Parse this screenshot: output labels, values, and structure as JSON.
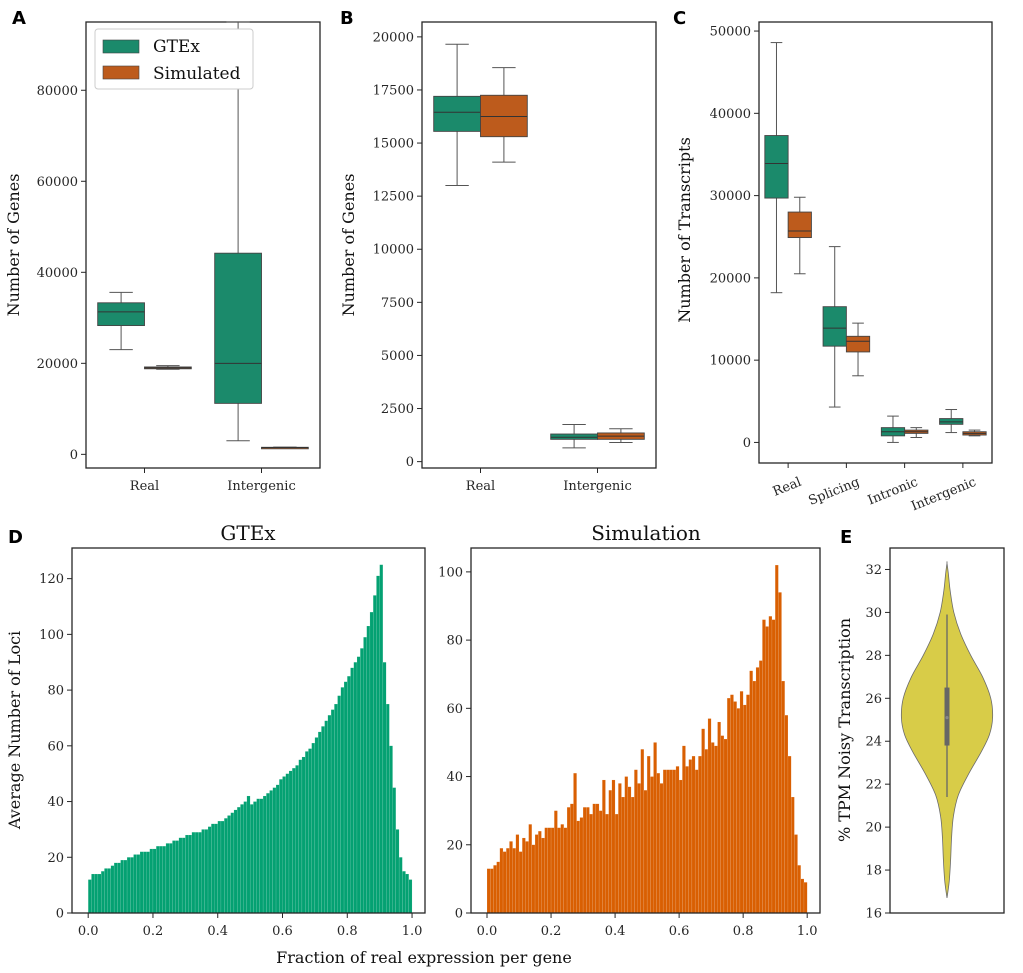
{
  "figure": {
    "panel_letters": [
      "A",
      "B",
      "C",
      "D",
      "E"
    ],
    "colors": {
      "gtex": "#1b8a6b",
      "simulated": "#bd5b1c",
      "gtex_hist": "#04a172",
      "sim_hist": "#d95f02",
      "violin": "#d8cc48"
    }
  },
  "chart_data": [
    {
      "id": "A",
      "type": "box",
      "title": "",
      "ylabel": "Number of Genes",
      "xlabel": "",
      "categories": [
        "Real",
        "Intergenic"
      ],
      "ylim": [
        -3000,
        95000
      ],
      "yticks": [
        0,
        20000,
        40000,
        60000,
        80000
      ],
      "legend": {
        "placement": "top-left",
        "entries": [
          "GTEx",
          "Simulated"
        ]
      },
      "series": [
        {
          "name": "GTEx",
          "boxes": [
            {
              "whislo": 23000,
              "q1": 28300,
              "med": 31300,
              "q3": 33300,
              "whishi": 35600
            },
            {
              "whislo": 3000,
              "q1": 11200,
              "med": 20000,
              "q3": 44200,
              "whishi": 95000
            }
          ]
        },
        {
          "name": "Simulated",
          "boxes": [
            {
              "whislo": 18700,
              "q1": 18800,
              "med": 19000,
              "q3": 19200,
              "whishi": 19500
            },
            {
              "whislo": 1400,
              "q1": 1450,
              "med": 1500,
              "q3": 1550,
              "whishi": 1600
            }
          ]
        }
      ]
    },
    {
      "id": "B",
      "type": "box",
      "title": "",
      "ylabel": "Number of Genes",
      "xlabel": "",
      "categories": [
        "Real",
        "Intergenic"
      ],
      "ylim": [
        -300,
        20700
      ],
      "yticks": [
        0,
        2500,
        5000,
        7500,
        10000,
        12500,
        15000,
        17500,
        20000
      ],
      "series": [
        {
          "name": "GTEx",
          "boxes": [
            {
              "whislo": 13000,
              "q1": 15550,
              "med": 16450,
              "q3": 17200,
              "whishi": 19650
            },
            {
              "whislo": 650,
              "q1": 1050,
              "med": 1150,
              "q3": 1300,
              "whishi": 1750
            }
          ]
        },
        {
          "name": "Simulated",
          "boxes": [
            {
              "whislo": 14100,
              "q1": 15300,
              "med": 16250,
              "q3": 17250,
              "whishi": 18550
            },
            {
              "whislo": 900,
              "q1": 1050,
              "med": 1200,
              "q3": 1350,
              "whishi": 1550
            }
          ]
        }
      ]
    },
    {
      "id": "C",
      "type": "box",
      "title": "",
      "ylabel": "Number of Transcripts",
      "xlabel": "",
      "categories": [
        "Real",
        "Splicing",
        "Intronic",
        "Intergenic"
      ],
      "ylim": [
        -2500,
        51100
      ],
      "yticks": [
        0,
        10000,
        20000,
        30000,
        40000,
        50000
      ],
      "series": [
        {
          "name": "GTEx",
          "boxes": [
            {
              "whislo": 18200,
              "q1": 29700,
              "med": 33900,
              "q3": 37300,
              "whishi": 48600
            },
            {
              "whislo": 4300,
              "q1": 11700,
              "med": 13900,
              "q3": 16500,
              "whishi": 23800
            },
            {
              "whislo": 0,
              "q1": 800,
              "med": 1300,
              "q3": 1800,
              "whishi": 3200
            },
            {
              "whislo": 1200,
              "q1": 2200,
              "med": 2500,
              "q3": 2900,
              "whishi": 4000
            }
          ]
        },
        {
          "name": "Simulated",
          "boxes": [
            {
              "whislo": 20500,
              "q1": 24900,
              "med": 25700,
              "q3": 28000,
              "whishi": 29800
            },
            {
              "whislo": 8100,
              "q1": 11000,
              "med": 12300,
              "q3": 12900,
              "whishi": 14500
            },
            {
              "whislo": 600,
              "q1": 1100,
              "med": 1300,
              "q3": 1500,
              "whishi": 1800
            },
            {
              "whislo": 800,
              "q1": 900,
              "med": 1100,
              "q3": 1300,
              "whishi": 1500
            }
          ]
        }
      ]
    },
    {
      "id": "D-GTEx",
      "type": "bar",
      "title": "GTEx",
      "ylabel": "Average Number of Loci",
      "xlabel": "Fraction of real expression per gene",
      "xlim": [
        -0.05,
        1.04
      ],
      "ylim": [
        0,
        131
      ],
      "xticks": [
        "0.0",
        "0.2",
        "0.4",
        "0.6",
        "0.8",
        "1.0"
      ],
      "yticks": [
        0,
        20,
        40,
        60,
        80,
        100,
        120
      ],
      "bin_width": 0.01,
      "x_start": 0.0,
      "values": [
        12,
        14,
        14,
        14,
        15,
        16,
        16,
        17,
        18,
        18,
        19,
        19,
        20,
        20,
        21,
        21,
        22,
        22,
        22,
        23,
        23,
        24,
        24,
        24,
        25,
        25,
        26,
        26,
        27,
        27,
        28,
        28,
        29,
        29,
        29,
        30,
        30,
        31,
        32,
        32,
        33,
        33,
        34,
        35,
        36,
        37,
        38,
        39,
        40,
        42,
        39,
        40,
        41,
        41,
        42,
        43,
        44,
        45,
        46,
        48,
        49,
        50,
        51,
        52,
        53,
        55,
        56,
        58,
        59,
        61,
        63,
        65,
        67,
        69,
        71,
        73,
        75,
        78,
        81,
        83,
        85,
        88,
        90,
        92,
        95,
        99,
        103,
        108,
        114,
        121,
        125,
        90,
        75,
        60,
        45,
        30,
        20,
        15,
        14,
        12
      ]
    },
    {
      "id": "D-Simulation",
      "type": "bar",
      "title": "Simulation",
      "ylabel": "",
      "xlabel": "Fraction of real expression per gene",
      "xlim": [
        -0.05,
        1.04
      ],
      "ylim": [
        0,
        107
      ],
      "xticks": [
        "0.0",
        "0.2",
        "0.4",
        "0.6",
        "0.8",
        "1.0"
      ],
      "yticks": [
        0,
        20,
        40,
        60,
        80,
        100
      ],
      "bin_width": 0.01,
      "x_start": 0.0,
      "values": [
        13,
        13,
        14,
        15,
        19,
        18,
        19,
        21,
        19,
        23,
        18,
        22,
        21,
        26,
        20,
        23,
        24,
        22,
        25,
        25,
        25,
        30,
        25,
        26,
        25,
        31,
        32,
        41,
        27,
        28,
        31,
        31,
        29,
        32,
        32,
        30,
        39,
        29,
        36,
        39,
        29,
        38,
        34,
        40,
        37,
        34,
        42,
        38,
        48,
        36,
        46,
        40,
        50,
        41,
        38,
        42,
        42,
        42,
        42,
        43,
        39,
        49,
        43,
        45,
        46,
        42,
        46,
        54,
        48,
        57,
        50,
        49,
        56,
        52,
        51,
        63,
        64,
        62,
        60,
        65,
        61,
        64,
        71,
        68,
        72,
        74,
        86,
        84,
        87,
        86,
        102,
        94,
        68,
        58,
        46,
        34,
        23,
        14,
        10,
        9
      ]
    },
    {
      "id": "E",
      "type": "violin",
      "title": "",
      "ylabel": "% TPM Noisy Transcription",
      "xlabel": "",
      "ylim": [
        16,
        33
      ],
      "yticks": [
        16,
        18,
        20,
        22,
        24,
        26,
        28,
        30,
        32
      ],
      "violin": {
        "min": 16.7,
        "max": 32.3,
        "mode": 25.1,
        "q1": 23.8,
        "median": 25.1,
        "q3": 26.5,
        "whislo": 21.4,
        "whishi": 29.9
      },
      "density_profile": [
        [
          16.7,
          0.0
        ],
        [
          17.5,
          0.05
        ],
        [
          18.5,
          0.08
        ],
        [
          19.5,
          0.1
        ],
        [
          20.5,
          0.14
        ],
        [
          21.5,
          0.25
        ],
        [
          22.5,
          0.48
        ],
        [
          23.5,
          0.75
        ],
        [
          24.3,
          0.93
        ],
        [
          25.1,
          1.0
        ],
        [
          26.0,
          0.96
        ],
        [
          27.0,
          0.78
        ],
        [
          28.0,
          0.52
        ],
        [
          29.0,
          0.3
        ],
        [
          30.0,
          0.15
        ],
        [
          31.0,
          0.07
        ],
        [
          31.8,
          0.03
        ],
        [
          32.3,
          0.0
        ]
      ]
    }
  ]
}
